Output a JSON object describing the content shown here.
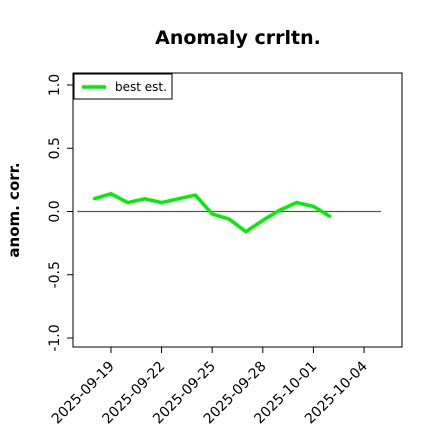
{
  "chart_data": {
    "type": "line",
    "title": "Anomaly crrltn.",
    "xlabel": "",
    "ylabel": "anom. corr.",
    "ylim": [
      -1.0,
      1.0
    ],
    "yticks": [
      -1.0,
      -0.5,
      0.0,
      0.5,
      1.0
    ],
    "ytick_labels": [
      "-1.0",
      "-0.5",
      "0.0",
      "0.5",
      "1.0"
    ],
    "xlim": [
      "2025-09-16T18:00",
      "2025-10-06T06:00"
    ],
    "xticks": [
      "2025-09-19",
      "2025-09-22",
      "2025-09-25",
      "2025-09-28",
      "2025-10-01",
      "2025-10-04"
    ],
    "xtick_labels": [
      "2025-09-19",
      "2025-09-22",
      "2025-09-25",
      "2025-09-28",
      "2025-10-01",
      "2025-10-04"
    ],
    "reference_line": {
      "y": 0.0,
      "x_start": "2025-09-17",
      "x_end": "2025-10-05",
      "color": "#555555"
    },
    "series": [
      {
        "name": "best est.",
        "color": "#00ee00",
        "x": [
          "2025-09-18",
          "2025-09-19",
          "2025-09-20",
          "2025-09-21",
          "2025-09-22",
          "2025-09-23",
          "2025-09-24",
          "2025-09-25",
          "2025-09-26",
          "2025-09-27",
          "2025-09-28",
          "2025-09-29",
          "2025-09-30",
          "2025-10-01",
          "2025-10-02"
        ],
        "values": [
          0.1,
          0.14,
          0.07,
          0.1,
          0.07,
          0.1,
          0.13,
          -0.02,
          -0.06,
          -0.16,
          -0.07,
          0.01,
          0.07,
          0.04,
          -0.04
        ]
      }
    ],
    "legend_position": "top-left",
    "grid": false
  }
}
